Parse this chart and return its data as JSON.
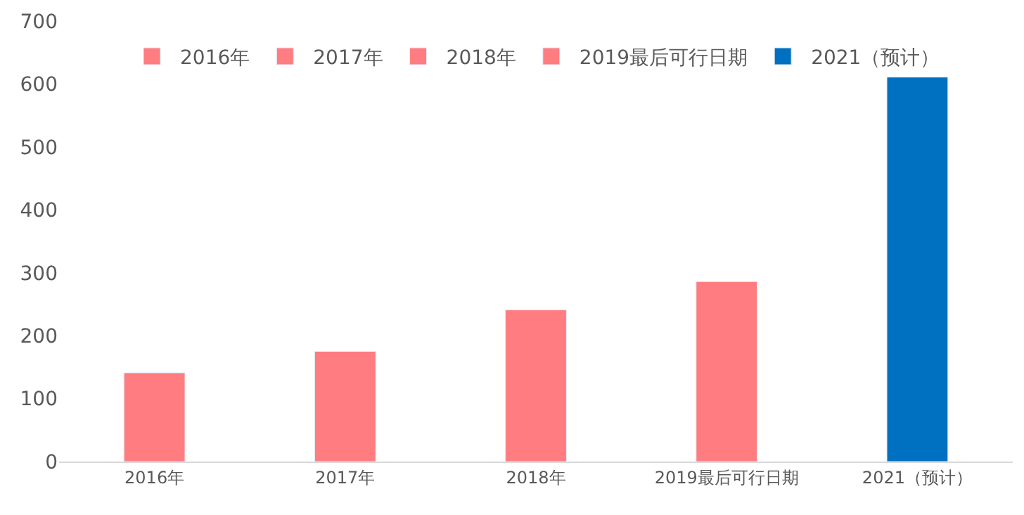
{
  "chart_data": {
    "type": "bar",
    "categories": [
      "2016年",
      "2017年",
      "2018年",
      "2019最后可行日期",
      "2021（预计）"
    ],
    "series": [
      {
        "name": "2016年",
        "color": "#ff7c80",
        "values": [
          141,
          null,
          null,
          null,
          null
        ]
      },
      {
        "name": "2017年",
        "color": "#ff7c80",
        "values": [
          null,
          175,
          null,
          null,
          null
        ]
      },
      {
        "name": "2018年",
        "color": "#ff7c80",
        "values": [
          null,
          null,
          241,
          null,
          null
        ]
      },
      {
        "name": "2019最后可行日期",
        "color": "#ff7c80",
        "values": [
          null,
          null,
          null,
          286,
          null
        ]
      },
      {
        "name": "2021（预计）",
        "color": "#0070c0",
        "values": [
          null,
          null,
          null,
          null,
          611
        ]
      }
    ],
    "ylim": [
      0,
      700
    ],
    "yticks": [
      0,
      100,
      200,
      300,
      400,
      500,
      600,
      700
    ],
    "grid": false,
    "legend": "top"
  }
}
